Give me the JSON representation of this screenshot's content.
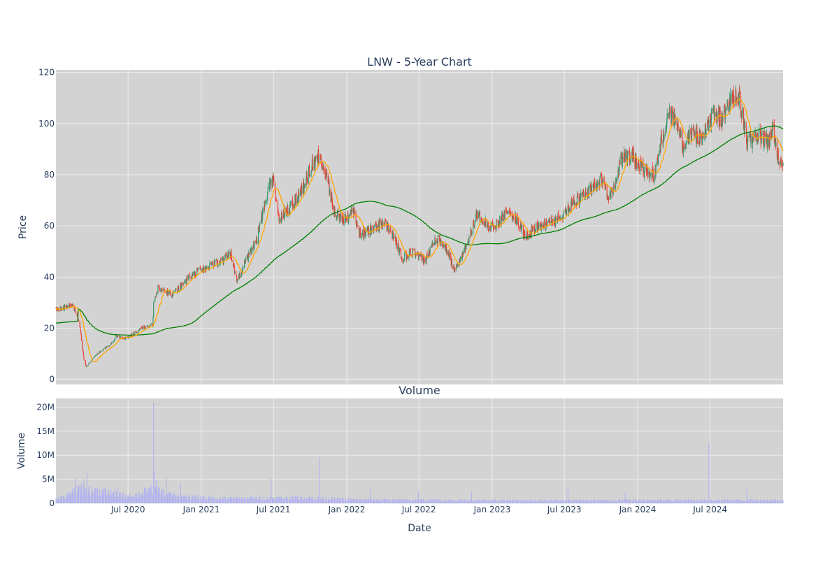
{
  "page": {
    "title": "LNW - 5-Year Chart",
    "volume_title": "Volume",
    "xlabel": "Date"
  },
  "colors": {
    "plot_bg": "#d3d3d3",
    "grid": "#ececec",
    "axis_text": "#2a3f5f",
    "increasing": "#3d9970",
    "decreasing": "#ef4136",
    "ma_short": "#ffa500",
    "ma_long": "#008000",
    "volume_bar": "#b3b3ef"
  },
  "chart_data": [
    {
      "type": "candlestick",
      "title": "LNW - 5-Year Chart",
      "ylabel": "Price",
      "ylim": [
        -2,
        121
      ],
      "y_ticks": [
        0,
        20,
        40,
        60,
        80,
        100,
        120
      ],
      "x_range": [
        "2020-01-02",
        "2024-12-31"
      ],
      "grid": true,
      "legend": "none",
      "price_anchors": [
        [
          "2020-01-02",
          27
        ],
        [
          "2020-02-12",
          29
        ],
        [
          "2020-03-01",
          22
        ],
        [
          "2020-03-12",
          8
        ],
        [
          "2020-03-18",
          5
        ],
        [
          "2020-04-15",
          10
        ],
        [
          "2020-05-20",
          14
        ],
        [
          "2020-06-01",
          17
        ],
        [
          "2020-06-25",
          16
        ],
        [
          "2020-08-05",
          20
        ],
        [
          "2020-09-01",
          21
        ],
        [
          "2020-09-03",
          30
        ],
        [
          "2020-09-15",
          36
        ],
        [
          "2020-10-20",
          33
        ],
        [
          "2020-12-01",
          40
        ],
        [
          "2021-01-15",
          44
        ],
        [
          "2021-02-20",
          46
        ],
        [
          "2021-03-15",
          49
        ],
        [
          "2021-04-01",
          39
        ],
        [
          "2021-05-20",
          55
        ],
        [
          "2021-06-20",
          76
        ],
        [
          "2021-07-01",
          78
        ],
        [
          "2021-07-15",
          62
        ],
        [
          "2021-08-15",
          68
        ],
        [
          "2021-09-05",
          72
        ],
        [
          "2021-10-01",
          82
        ],
        [
          "2021-10-22",
          88
        ],
        [
          "2021-11-15",
          77
        ],
        [
          "2021-12-01",
          65
        ],
        [
          "2022-01-01",
          62
        ],
        [
          "2022-01-15",
          67
        ],
        [
          "2022-02-05",
          56
        ],
        [
          "2022-03-15",
          60
        ],
        [
          "2022-04-10",
          61
        ],
        [
          "2022-05-01",
          55
        ],
        [
          "2022-05-20",
          47
        ],
        [
          "2022-06-15",
          50
        ],
        [
          "2022-07-15",
          46
        ],
        [
          "2022-08-15",
          55
        ],
        [
          "2022-09-05",
          52
        ],
        [
          "2022-09-30",
          42
        ],
        [
          "2022-10-20",
          49
        ],
        [
          "2022-11-10",
          58
        ],
        [
          "2022-11-25",
          65
        ],
        [
          "2022-12-20",
          60
        ],
        [
          "2023-01-10",
          60
        ],
        [
          "2023-02-10",
          66
        ],
        [
          "2023-03-05",
          62
        ],
        [
          "2023-03-25",
          56
        ],
        [
          "2023-04-25",
          60
        ],
        [
          "2023-06-10",
          62
        ],
        [
          "2023-07-05",
          66
        ],
        [
          "2023-08-01",
          70
        ],
        [
          "2023-08-15",
          72
        ],
        [
          "2023-09-10",
          75
        ],
        [
          "2023-10-01",
          78
        ],
        [
          "2023-10-20",
          70
        ],
        [
          "2023-11-10",
          78
        ],
        [
          "2023-11-20",
          86
        ],
        [
          "2023-12-15",
          87
        ],
        [
          "2024-01-10",
          83
        ],
        [
          "2024-02-10",
          80
        ],
        [
          "2024-03-01",
          94
        ],
        [
          "2024-03-20",
          104
        ],
        [
          "2024-04-05",
          101
        ],
        [
          "2024-04-25",
          90
        ],
        [
          "2024-05-20",
          97
        ],
        [
          "2024-06-10",
          93
        ],
        [
          "2024-07-05",
          103
        ],
        [
          "2024-08-01",
          102
        ],
        [
          "2024-08-20",
          108
        ],
        [
          "2024-09-10",
          112
        ],
        [
          "2024-10-01",
          93
        ],
        [
          "2024-11-01",
          95
        ],
        [
          "2024-11-25",
          93
        ],
        [
          "2024-12-05",
          98
        ],
        [
          "2024-12-20",
          86
        ],
        [
          "2024-12-31",
          85
        ]
      ],
      "ma_short_name": "20-day MA",
      "ma_long_name": "200-day MA"
    },
    {
      "type": "bar",
      "title": "Volume",
      "ylabel": "Volume",
      "xlabel": "Date",
      "ylim": [
        0,
        21800000
      ],
      "y_ticks": [
        0,
        5000000,
        10000000,
        15000000,
        20000000
      ],
      "y_tick_labels": [
        "0",
        "5M",
        "10M",
        "15M",
        "20M"
      ],
      "x_ticks": [
        "2020-07-01",
        "2021-01-01",
        "2021-07-01",
        "2022-01-01",
        "2022-07-01",
        "2023-01-01",
        "2023-07-01",
        "2024-01-01",
        "2024-07-01"
      ],
      "x_tick_labels": [
        "Jul 2020",
        "Jan 2021",
        "Jul 2021",
        "Jan 2022",
        "Jul 2022",
        "Jan 2023",
        "Jul 2023",
        "Jan 2024",
        "Jul 2024"
      ],
      "volume_base": [
        [
          "2020-01-02",
          700000
        ],
        [
          "2020-03-01",
          2500000
        ],
        [
          "2020-05-01",
          2200000
        ],
        [
          "2020-07-01",
          1200000
        ],
        [
          "2020-09-01",
          2500000
        ],
        [
          "2020-11-01",
          1200000
        ],
        [
          "2021-03-01",
          900000
        ],
        [
          "2021-10-01",
          1000000
        ],
        [
          "2022-01-01",
          700000
        ],
        [
          "2022-07-01",
          600000
        ],
        [
          "2023-01-01",
          500000
        ],
        [
          "2024-12-31",
          600000
        ]
      ],
      "volume_spikes": [
        [
          "2020-02-20",
          5300000
        ],
        [
          "2020-03-12",
          5100000
        ],
        [
          "2020-03-20",
          6400000
        ],
        [
          "2020-04-15",
          3100000
        ],
        [
          "2020-06-05",
          3200000
        ],
        [
          "2020-07-25",
          2600000
        ],
        [
          "2020-09-03",
          21000000
        ],
        [
          "2020-09-04",
          7000000
        ],
        [
          "2020-09-10",
          4800000
        ],
        [
          "2020-10-05",
          5200000
        ],
        [
          "2020-11-10",
          4300000
        ],
        [
          "2021-06-25",
          5100000
        ],
        [
          "2021-10-25",
          9500000
        ],
        [
          "2022-03-01",
          2900000
        ],
        [
          "2022-06-30",
          2600000
        ],
        [
          "2022-11-10",
          2500000
        ],
        [
          "2023-07-10",
          3200000
        ],
        [
          "2023-12-01",
          2200000
        ],
        [
          "2024-06-28",
          12600000
        ],
        [
          "2024-10-01",
          2900000
        ]
      ]
    }
  ]
}
